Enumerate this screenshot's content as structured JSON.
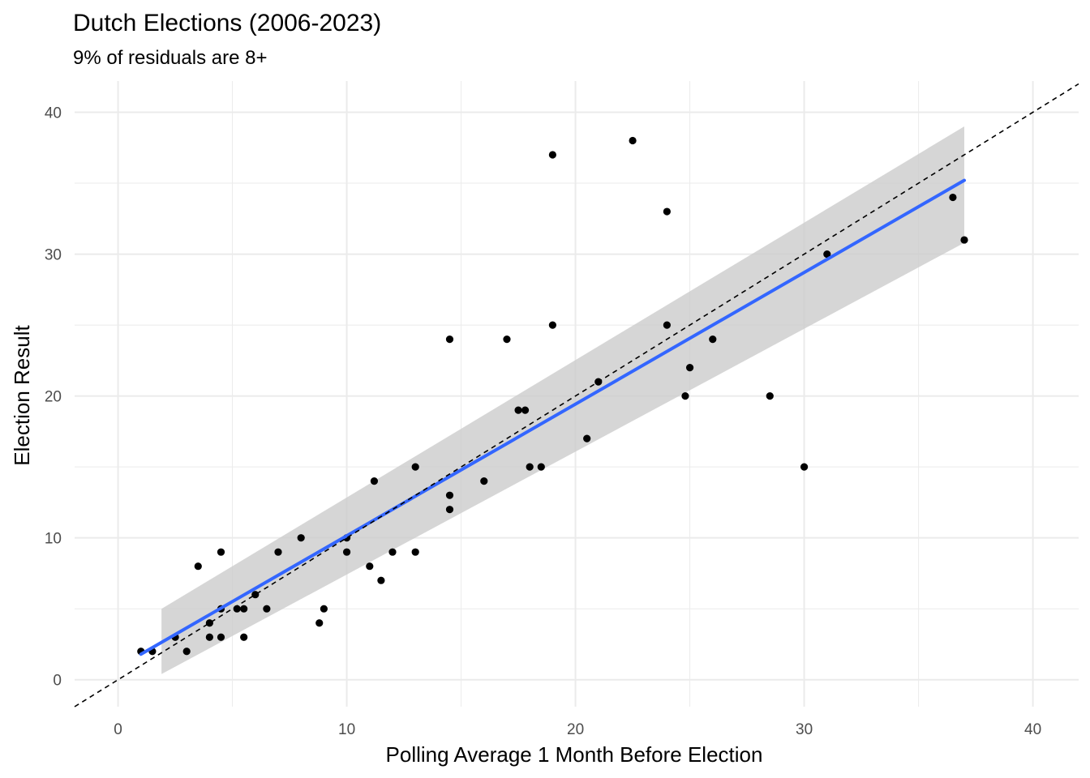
{
  "chart_data": {
    "type": "scatter",
    "title": "Dutch Elections (2006-2023)",
    "subtitle": "9% of residuals are 8+",
    "xlabel": "Polling Average 1 Month Before Election",
    "ylabel": "Election Result",
    "xlim": [
      -1.9,
      42
    ],
    "ylim": [
      -1.9,
      42.2
    ],
    "x_ticks": [
      "0",
      "10",
      "20",
      "30",
      "40"
    ],
    "y_ticks": [
      "0",
      "10",
      "20",
      "30",
      "40"
    ],
    "grid": true,
    "legend": "none",
    "points": [
      [
        1,
        2
      ],
      [
        1.5,
        2
      ],
      [
        2.5,
        3
      ],
      [
        3,
        2
      ],
      [
        3.5,
        8
      ],
      [
        4,
        3
      ],
      [
        4,
        4
      ],
      [
        4.5,
        9
      ],
      [
        4.5,
        5
      ],
      [
        4.5,
        3
      ],
      [
        5.2,
        5
      ],
      [
        5.5,
        5
      ],
      [
        5.5,
        3
      ],
      [
        6,
        6
      ],
      [
        6.5,
        5
      ],
      [
        7,
        9
      ],
      [
        8,
        10
      ],
      [
        8.8,
        4
      ],
      [
        9,
        5
      ],
      [
        10,
        9
      ],
      [
        10,
        10
      ],
      [
        11,
        8
      ],
      [
        11.2,
        14
      ],
      [
        11.5,
        7
      ],
      [
        12,
        9
      ],
      [
        13,
        15
      ],
      [
        13,
        9
      ],
      [
        14.5,
        24
      ],
      [
        14.5,
        13
      ],
      [
        14.5,
        12
      ],
      [
        16,
        14
      ],
      [
        17,
        24
      ],
      [
        17.5,
        19
      ],
      [
        17.8,
        19
      ],
      [
        18,
        15
      ],
      [
        18.5,
        15
      ],
      [
        19,
        37
      ],
      [
        19,
        25
      ],
      [
        20.5,
        17
      ],
      [
        21,
        21
      ],
      [
        22.5,
        38
      ],
      [
        24,
        33
      ],
      [
        24,
        25
      ],
      [
        24.8,
        20
      ],
      [
        25,
        22
      ],
      [
        26,
        24
      ],
      [
        28.5,
        20
      ],
      [
        30,
        15
      ],
      [
        31,
        30
      ],
      [
        36.5,
        34
      ],
      [
        37,
        31
      ]
    ],
    "fit_line": {
      "x": [
        1,
        37
      ],
      "y": [
        1.8,
        35.2
      ]
    },
    "confidence_band": {
      "x": [
        1.9,
        37
      ],
      "upper": [
        5,
        39
      ],
      "lower": [
        0.4,
        30.8
      ]
    },
    "reference_line": {
      "label": "",
      "x": [
        -1.9,
        42
      ],
      "y": [
        -1.9,
        42
      ]
    },
    "colors": {
      "points": "#000000",
      "fit": "#3366ff",
      "band": "#cccccc",
      "grid": "#ebebeb",
      "reference": "#000000"
    }
  }
}
